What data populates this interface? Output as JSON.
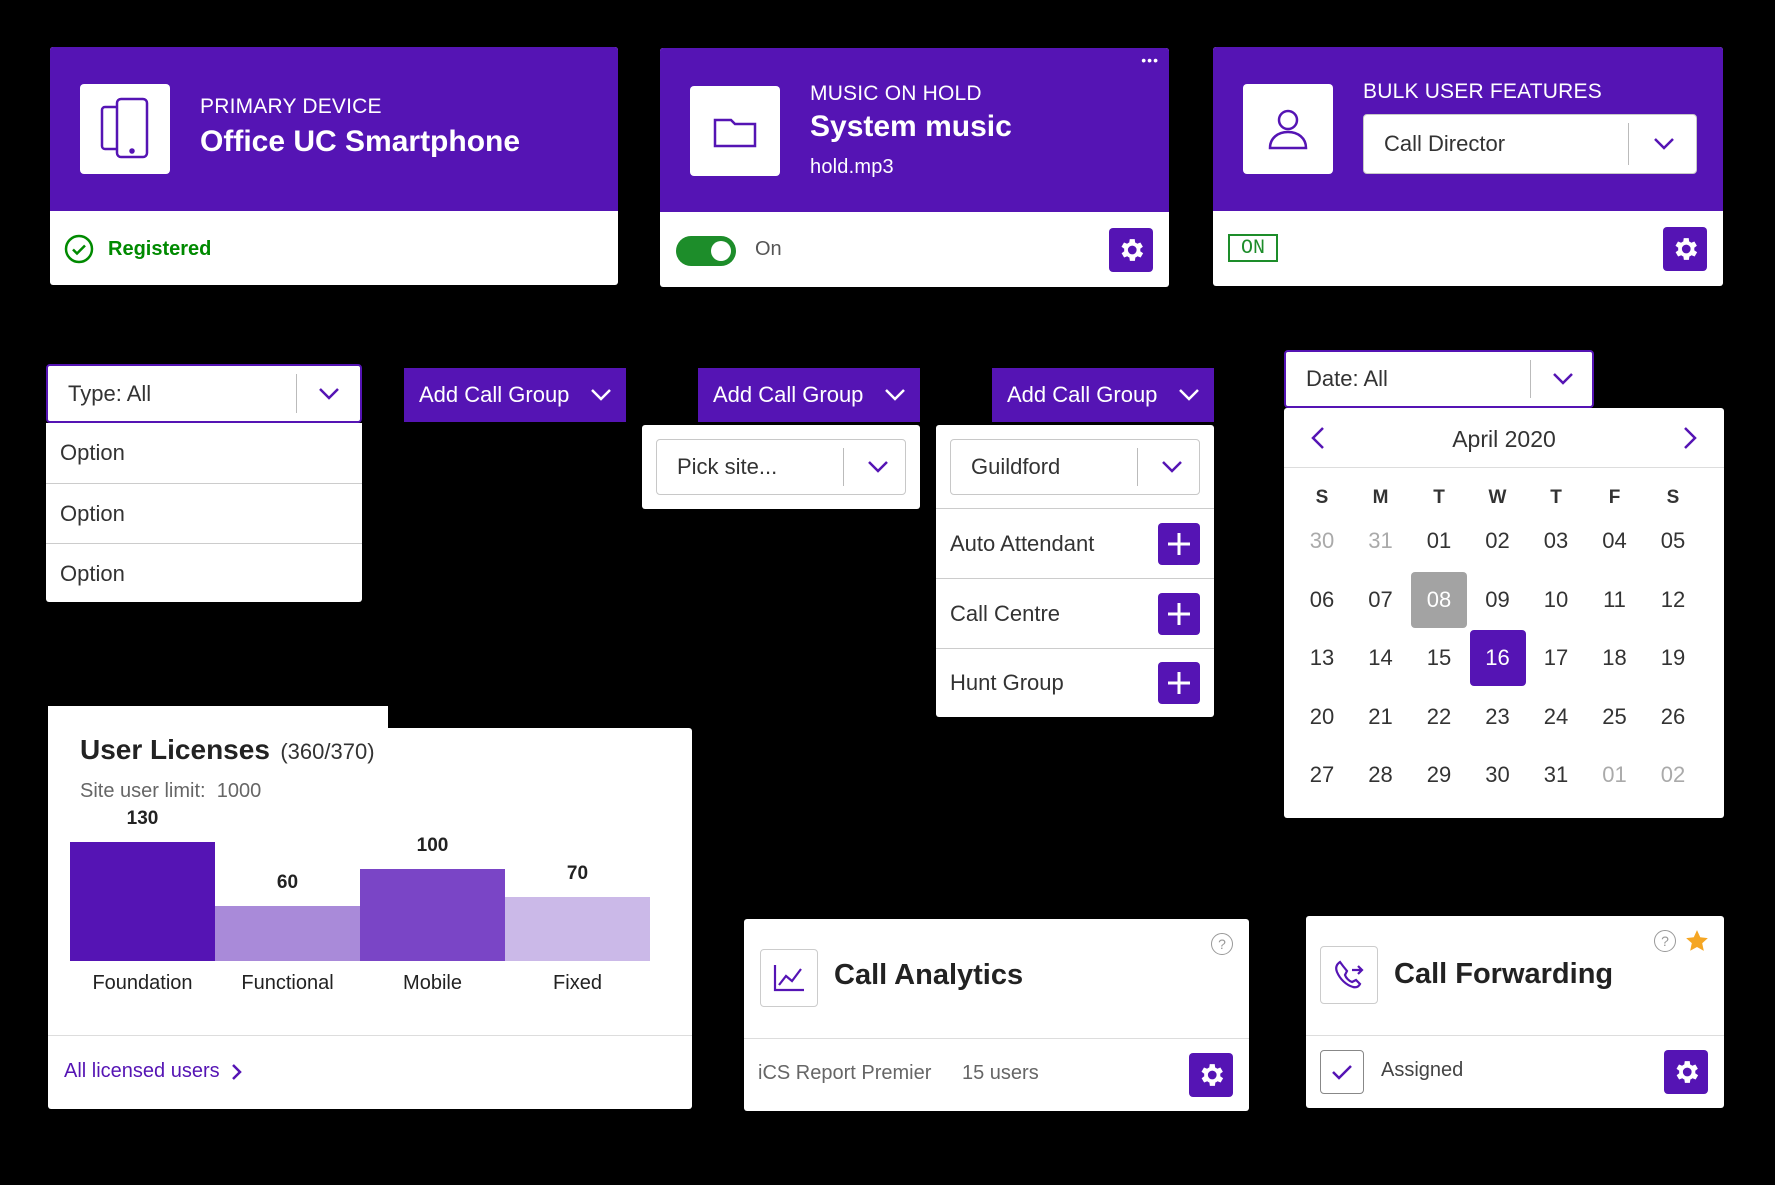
{
  "primary_device": {
    "caption": "PRIMARY DEVICE",
    "title": "Office UC Smartphone",
    "status": "Registered",
    "icon": "phones-icon"
  },
  "music_on_hold": {
    "caption": "MUSIC ON HOLD",
    "title": "System music",
    "subtitle": "hold.mp3",
    "toggle_label": "On",
    "toggle_on": true,
    "more": "•••",
    "icon": "folder-icon"
  },
  "bulk_user": {
    "caption": "BULK USER FEATURES",
    "select_value": "Call Director",
    "badge": "ON",
    "icon": "user-icon"
  },
  "type_select": {
    "value": "Type: All",
    "options": [
      "Option",
      "Option",
      "Option"
    ]
  },
  "add_call_group": {
    "label": "Add Call Group",
    "site_placeholder": "Pick site...",
    "site_value": "Guildford",
    "items": [
      "Auto Attendant",
      "Call Centre",
      "Hunt Group"
    ]
  },
  "date_picker": {
    "value": "Date: All",
    "month": "April 2020",
    "weekdays": [
      "S",
      "M",
      "T",
      "W",
      "T",
      "F",
      "S"
    ],
    "days": [
      [
        "30",
        "31",
        "01",
        "02",
        "03",
        "04",
        "05"
      ],
      [
        "06",
        "07",
        "08",
        "09",
        "10",
        "11",
        "12"
      ],
      [
        "13",
        "14",
        "15",
        "16",
        "17",
        "18",
        "19"
      ],
      [
        "20",
        "21",
        "22",
        "23",
        "24",
        "25",
        "26"
      ],
      [
        "27",
        "28",
        "29",
        "30",
        "31",
        "01",
        "02"
      ]
    ],
    "today": "08",
    "selected": "16"
  },
  "user_licenses": {
    "title": "User Licenses",
    "count": "(360/370)",
    "limit_text": "Site user limit:  1000",
    "footer_link": "All licensed users"
  },
  "chart_data": {
    "type": "bar",
    "categories": [
      "Foundation",
      "Functional",
      "Mobile",
      "Fixed"
    ],
    "values": [
      130,
      60,
      100,
      70
    ],
    "colors": [
      "#5514b4",
      "#a98ad9",
      "#7a45c6",
      "#cbb9e8"
    ],
    "title": "",
    "xlabel": "",
    "ylabel": ""
  },
  "call_analytics": {
    "title": "Call Analytics",
    "product": "iCS Report Premier",
    "users": "15 users",
    "help": "?"
  },
  "call_forwarding": {
    "title": "Call Forwarding",
    "status": "Assigned",
    "help": "?",
    "starred": true
  },
  "colors": {
    "brand_purple": "#5514b4",
    "success_green": "#008a00",
    "star": "#f5a623"
  }
}
